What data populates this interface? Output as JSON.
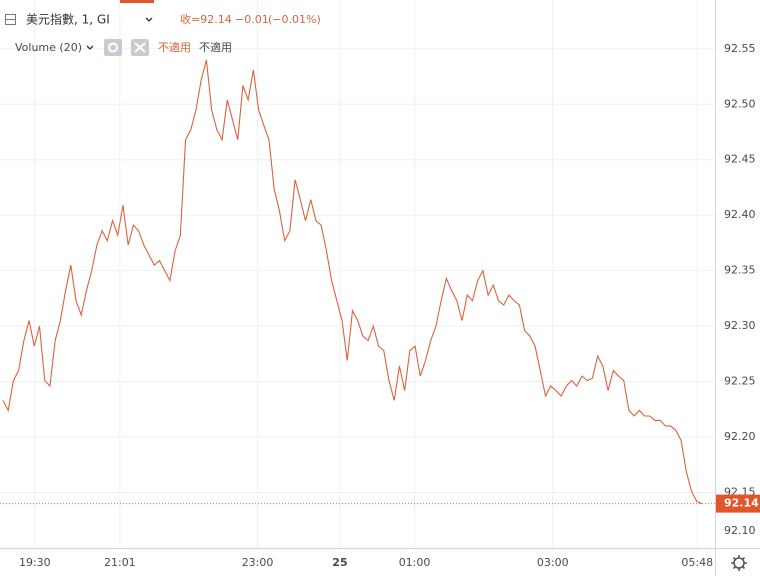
{
  "chart_data": {
    "type": "line",
    "title": "美元指數, 1, GI",
    "close_text": "收=92.14",
    "change_text": "−0.01",
    "change_pct_text": "(−0.01%)",
    "indicator": "Volume (20)",
    "indicator_values": [
      "不適用",
      "不適用"
    ],
    "color": "#d9643c",
    "grid": true,
    "values": [
      92.233,
      92.224,
      92.251,
      92.26,
      92.287,
      92.305,
      92.282,
      92.3,
      92.251,
      92.246,
      92.287,
      92.305,
      92.332,
      92.355,
      92.323,
      92.31,
      92.332,
      92.35,
      92.373,
      92.386,
      92.377,
      92.395,
      92.382,
      92.409,
      92.373,
      92.391,
      92.386,
      92.373,
      92.364,
      92.355,
      92.359,
      92.35,
      92.341,
      92.368,
      92.382,
      92.468,
      92.477,
      92.495,
      92.522,
      92.54,
      92.495,
      92.477,
      92.468,
      92.504,
      92.486,
      92.468,
      92.517,
      92.504,
      92.531,
      92.495,
      92.481,
      92.468,
      92.423,
      92.404,
      92.377,
      92.386,
      92.432,
      92.414,
      92.395,
      92.414,
      92.395,
      92.391,
      92.368,
      92.341,
      92.323,
      92.305,
      92.269,
      92.314,
      92.305,
      92.291,
      92.287,
      92.3,
      92.282,
      92.278,
      92.251,
      92.233,
      92.264,
      92.242,
      92.278,
      92.282,
      92.255,
      92.269,
      92.287,
      92.3,
      92.323,
      92.343,
      92.332,
      92.323,
      92.305,
      92.328,
      92.323,
      92.341,
      92.35,
      92.328,
      92.337,
      92.323,
      92.319,
      92.328,
      92.323,
      92.319,
      92.296,
      92.291,
      92.282,
      92.26,
      92.237,
      92.246,
      92.242,
      92.237,
      92.246,
      92.251,
      92.246,
      92.255,
      92.251,
      92.253,
      92.273,
      92.264,
      92.242,
      92.26,
      92.255,
      92.251,
      92.224,
      92.219,
      92.224,
      92.219,
      92.219,
      92.215,
      92.215,
      92.21,
      92.21,
      92.206,
      92.197,
      92.169,
      92.151,
      92.142,
      92.14
    ],
    "last_price": 92.14,
    "xlim": [
      -0.575,
      136.5
    ],
    "xticks": [
      {
        "value": 6.1,
        "label": "19:30"
      },
      {
        "value": 22.4,
        "label": "21:01"
      },
      {
        "value": 48.8,
        "label": "23:00"
      },
      {
        "value": 64.6,
        "label": "25"
      },
      {
        "value": 78.9,
        "label": "01:00"
      },
      {
        "value": 105.4,
        "label": "03:00"
      },
      {
        "value": 133.1,
        "label": "05:48"
      }
    ],
    "ylim": [
      92.1,
      92.594
    ],
    "yticks": [
      {
        "value": 92.1,
        "label": "92.10"
      },
      92.15,
      {
        "value": 92.2,
        "label": "92.20"
      },
      92.25,
      {
        "value": 92.3,
        "label": "92.30"
      },
      92.35,
      {
        "value": 92.4,
        "label": "92.40"
      },
      92.45,
      {
        "value": 92.5,
        "label": "92.50"
      },
      92.55
    ]
  }
}
